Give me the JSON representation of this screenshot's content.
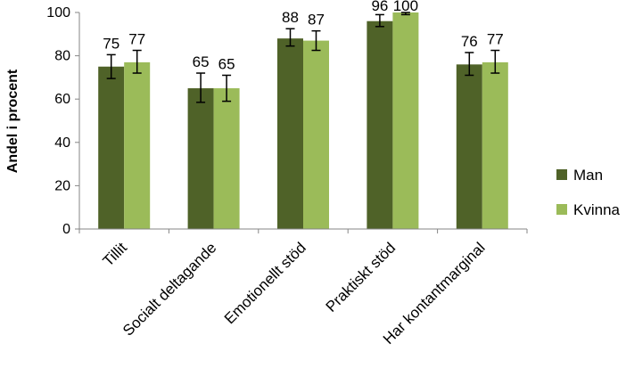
{
  "chart_data": {
    "type": "bar",
    "title": "",
    "xlabel": "",
    "ylabel": "Andel i procent",
    "ylim": [
      0,
      100
    ],
    "yticks": [
      0,
      20,
      40,
      60,
      80,
      100
    ],
    "grid": false,
    "legend_position": "right",
    "categories": [
      "Tillit",
      "Socialt deltagande",
      "Emotionellt stöd",
      "Praktiskt stöd",
      "Har kontantmarginal"
    ],
    "series": [
      {
        "name": "Man",
        "color": "#4f6228",
        "values": [
          75,
          65,
          88,
          96,
          76
        ],
        "labels": [
          "75",
          "65",
          "88",
          "96",
          "76"
        ],
        "error_low": [
          69.5,
          58.5,
          84.5,
          93.5,
          71
        ],
        "error_high": [
          80.5,
          72,
          92.5,
          99,
          81.5
        ]
      },
      {
        "name": "Kvinna",
        "color": "#9bbb59",
        "values": [
          77,
          65,
          87,
          100,
          77
        ],
        "labels": [
          "77",
          "65",
          "87",
          "100",
          "77"
        ],
        "error_low": [
          72,
          59,
          82.5,
          99,
          72
        ],
        "error_high": [
          82.5,
          71,
          91.5,
          100,
          82.5
        ]
      }
    ]
  }
}
